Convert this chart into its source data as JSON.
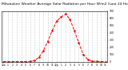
{
  "title": "Milwaukee Weather Average Solar Radiation per Hour W/m2 (Last 24 Hours)",
  "title_fontsize": 3.2,
  "x_values": [
    0,
    1,
    2,
    3,
    4,
    5,
    6,
    7,
    8,
    9,
    10,
    11,
    12,
    13,
    14,
    15,
    16,
    17,
    18,
    19,
    20,
    21,
    22,
    23
  ],
  "y_values": [
    0,
    0,
    0,
    0,
    0,
    0,
    2,
    15,
    60,
    150,
    280,
    430,
    560,
    620,
    660,
    590,
    430,
    260,
    100,
    30,
    5,
    2,
    0,
    0
  ],
  "x_tick_positions": [
    0,
    1,
    2,
    3,
    4,
    5,
    6,
    7,
    8,
    9,
    10,
    11,
    12,
    13,
    14,
    15,
    16,
    17,
    18,
    19,
    20,
    21,
    22,
    23
  ],
  "x_tick_labels": [
    "12a",
    "1",
    "2",
    "3",
    "4",
    "5",
    "6",
    "7",
    "8",
    "9",
    "10",
    "11",
    "12p",
    "1",
    "2",
    "3",
    "4",
    "5",
    "6",
    "7",
    "8",
    "9",
    "10",
    "11"
  ],
  "y_tick_values": [
    0,
    100,
    200,
    300,
    400,
    500,
    600,
    700
  ],
  "ylim": [
    0,
    700
  ],
  "xlim": [
    -0.5,
    23.5
  ],
  "line_color": "#ff0000",
  "line_style": "--",
  "line_width": 0.7,
  "marker": "s",
  "marker_size": 0.8,
  "grid_color": "#999999",
  "grid_style": ":",
  "bg_color": "#ffffff",
  "plot_bg_color": "#ffffff",
  "tick_fontsize": 2.2
}
